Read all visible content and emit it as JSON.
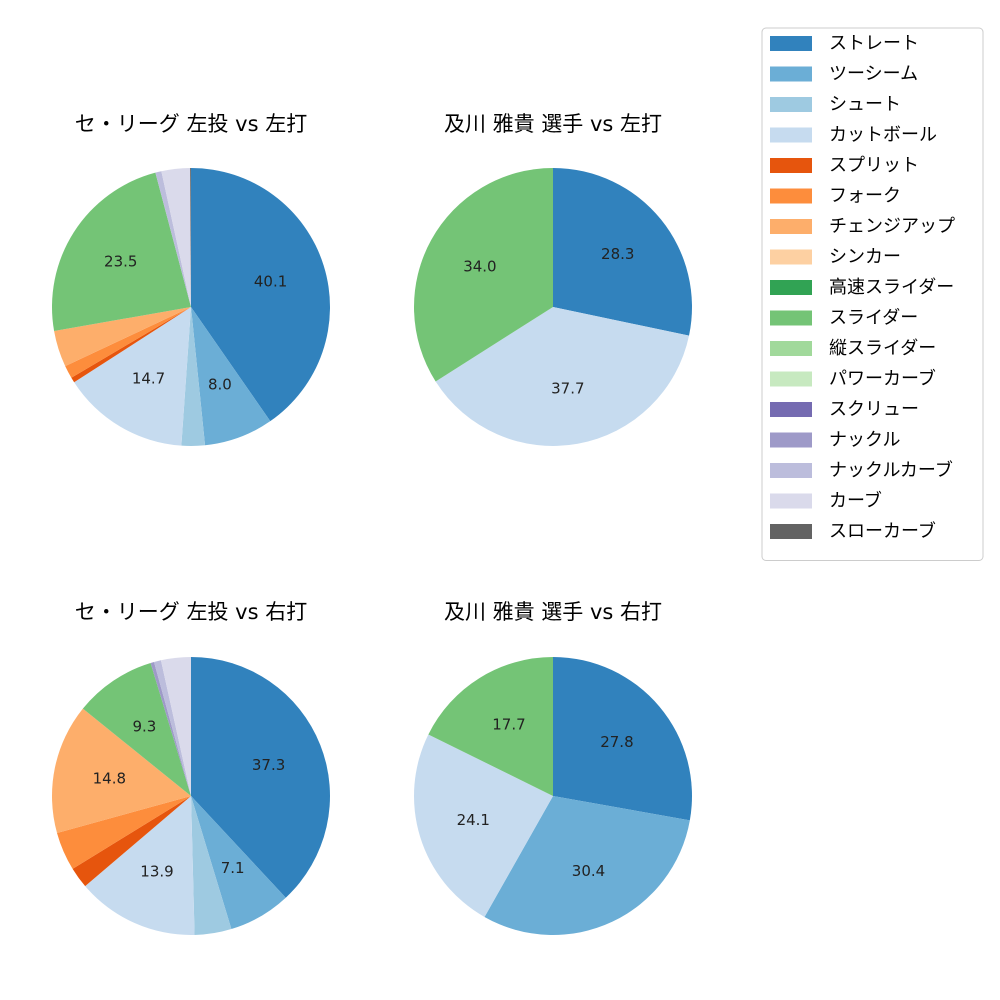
{
  "chart_data": [
    {
      "type": "pie",
      "title": "セ・リーグ 左投 vs 左打",
      "start": "top",
      "direction": "clockwise",
      "labels_shown_min_percent": 5,
      "slices": [
        {
          "category": "ストレート",
          "value": 40.1
        },
        {
          "category": "ツーシーム",
          "value": 8.0
        },
        {
          "category": "シュート",
          "value": 2.7
        },
        {
          "category": "カットボール",
          "value": 14.7
        },
        {
          "category": "スプリット",
          "value": 0.6
        },
        {
          "category": "フォーク",
          "value": 1.5
        },
        {
          "category": "チェンジアップ",
          "value": 4.2
        },
        {
          "category": "スライダー",
          "value": 23.5
        },
        {
          "category": "ナックルカーブ",
          "value": 0.7
        },
        {
          "category": "カーブ",
          "value": 3.3
        },
        {
          "category": "スローカーブ",
          "value": 0.1
        }
      ]
    },
    {
      "type": "pie",
      "title": "及川 雅貴 選手 vs 左打",
      "start": "top",
      "direction": "clockwise",
      "labels_shown_min_percent": 5,
      "slices": [
        {
          "category": "ストレート",
          "value": 28.3
        },
        {
          "category": "カットボール",
          "value": 37.7
        },
        {
          "category": "スライダー",
          "value": 34.0
        }
      ]
    },
    {
      "type": "pie",
      "title": "セ・リーグ 左投 vs 右打",
      "start": "top",
      "direction": "clockwise",
      "labels_shown_min_percent": 5,
      "slices": [
        {
          "category": "ストレート",
          "value": 37.3
        },
        {
          "category": "ツーシーム",
          "value": 7.1
        },
        {
          "category": "シュート",
          "value": 4.2
        },
        {
          "category": "カットボール",
          "value": 13.9
        },
        {
          "category": "スプリット",
          "value": 2.4
        },
        {
          "category": "フォーク",
          "value": 4.4
        },
        {
          "category": "チェンジアップ",
          "value": 14.8
        },
        {
          "category": "スライダー",
          "value": 9.3
        },
        {
          "category": "ナックル",
          "value": 0.4
        },
        {
          "category": "ナックルカーブ",
          "value": 0.8
        },
        {
          "category": "カーブ",
          "value": 3.4
        }
      ]
    },
    {
      "type": "pie",
      "title": "及川 雅貴 選手 vs 右打",
      "start": "top",
      "direction": "clockwise",
      "labels_shown_min_percent": 5,
      "slices": [
        {
          "category": "ストレート",
          "value": 27.8
        },
        {
          "category": "ツーシーム",
          "value": 30.4
        },
        {
          "category": "カットボール",
          "value": 24.1
        },
        {
          "category": "スライダー",
          "value": 17.7
        }
      ]
    }
  ],
  "legend": {
    "placement": "top-right",
    "items": [
      {
        "label": "ストレート",
        "color": "#3182bd"
      },
      {
        "label": "ツーシーム",
        "color": "#6baed6"
      },
      {
        "label": "シュート",
        "color": "#9ecae1"
      },
      {
        "label": "カットボール",
        "color": "#c6dbef"
      },
      {
        "label": "スプリット",
        "color": "#e6550d"
      },
      {
        "label": "フォーク",
        "color": "#fd8d3c"
      },
      {
        "label": "チェンジアップ",
        "color": "#fdae6b"
      },
      {
        "label": "シンカー",
        "color": "#fdd0a2"
      },
      {
        "label": "高速スライダー",
        "color": "#31a354"
      },
      {
        "label": "スライダー",
        "color": "#74c476"
      },
      {
        "label": "縦スライダー",
        "color": "#a1d99b"
      },
      {
        "label": "パワーカーブ",
        "color": "#c7e9c0"
      },
      {
        "label": "スクリュー",
        "color": "#756bb1"
      },
      {
        "label": "ナックル",
        "color": "#9e9ac8"
      },
      {
        "label": "ナックルカーブ",
        "color": "#bcbddc"
      },
      {
        "label": "カーブ",
        "color": "#dadaeb"
      },
      {
        "label": "スローカーブ",
        "color": "#636363"
      }
    ]
  }
}
